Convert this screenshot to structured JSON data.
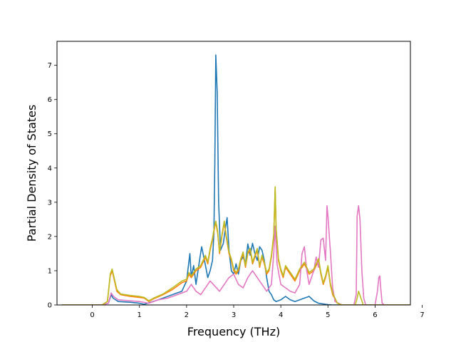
{
  "chart_data": {
    "type": "line",
    "xlabel": "Frequency (THz)",
    "ylabel": "Partial Density of States",
    "xlim": [
      -0.75,
      6.75
    ],
    "ylim": [
      0,
      7.7
    ],
    "xticks": [
      "0",
      "1",
      "2",
      "3",
      "4",
      "5",
      "6",
      "7"
    ],
    "yticks": [
      "0",
      "1",
      "2",
      "3",
      "4",
      "5",
      "6",
      "7"
    ],
    "grid": false,
    "legend": "none",
    "series": [
      {
        "color": "#1f77b4",
        "points": [
          [
            -0.65,
            0
          ],
          [
            0.2,
            0
          ],
          [
            0.34,
            0.05
          ],
          [
            0.4,
            0.3
          ],
          [
            0.44,
            0.2
          ],
          [
            0.55,
            0.1
          ],
          [
            0.8,
            0.08
          ],
          [
            1.0,
            0.05
          ],
          [
            1.1,
            0.02
          ],
          [
            1.2,
            0.06
          ],
          [
            1.4,
            0.15
          ],
          [
            1.6,
            0.25
          ],
          [
            1.8,
            0.35
          ],
          [
            1.9,
            0.4
          ],
          [
            2.0,
            0.7
          ],
          [
            2.07,
            1.5
          ],
          [
            2.1,
            0.8
          ],
          [
            2.15,
            1.15
          ],
          [
            2.2,
            0.6
          ],
          [
            2.28,
            1.35
          ],
          [
            2.32,
            1.7
          ],
          [
            2.38,
            1.3
          ],
          [
            2.45,
            0.8
          ],
          [
            2.5,
            1.0
          ],
          [
            2.55,
            1.3
          ],
          [
            2.58,
            2.1
          ],
          [
            2.6,
            4.2
          ],
          [
            2.62,
            7.3
          ],
          [
            2.65,
            6.2
          ],
          [
            2.68,
            3.0
          ],
          [
            2.72,
            1.6
          ],
          [
            2.78,
            1.8
          ],
          [
            2.82,
            2.2
          ],
          [
            2.86,
            2.55
          ],
          [
            2.9,
            1.6
          ],
          [
            2.95,
            1.0
          ],
          [
            3.0,
            0.9
          ],
          [
            3.05,
            1.2
          ],
          [
            3.1,
            0.9
          ],
          [
            3.15,
            1.3
          ],
          [
            3.2,
            1.4
          ],
          [
            3.25,
            1.2
          ],
          [
            3.3,
            1.78
          ],
          [
            3.35,
            1.45
          ],
          [
            3.4,
            1.8
          ],
          [
            3.45,
            1.5
          ],
          [
            3.5,
            1.3
          ],
          [
            3.55,
            1.7
          ],
          [
            3.6,
            1.6
          ],
          [
            3.65,
            1.3
          ],
          [
            3.7,
            0.8
          ],
          [
            3.75,
            0.4
          ],
          [
            3.8,
            0.3
          ],
          [
            3.85,
            0.15
          ],
          [
            3.9,
            0.1
          ],
          [
            4.0,
            0.15
          ],
          [
            4.1,
            0.25
          ],
          [
            4.2,
            0.15
          ],
          [
            4.3,
            0.1
          ],
          [
            4.5,
            0.2
          ],
          [
            4.6,
            0.25
          ],
          [
            4.7,
            0.12
          ],
          [
            4.8,
            0.05
          ],
          [
            4.9,
            0.03
          ],
          [
            5.0,
            0.01
          ],
          [
            5.1,
            0
          ],
          [
            6.75,
            0
          ]
        ]
      },
      {
        "color": "#ff7f0e",
        "points": [
          [
            -0.65,
            0
          ],
          [
            0.2,
            0
          ],
          [
            0.32,
            0.1
          ],
          [
            0.38,
            0.85
          ],
          [
            0.42,
            1.0
          ],
          [
            0.47,
            0.7
          ],
          [
            0.52,
            0.4
          ],
          [
            0.6,
            0.3
          ],
          [
            0.8,
            0.25
          ],
          [
            1.0,
            0.22
          ],
          [
            1.1,
            0.2
          ],
          [
            1.2,
            0.1
          ],
          [
            1.3,
            0.18
          ],
          [
            1.5,
            0.3
          ],
          [
            1.7,
            0.45
          ],
          [
            1.9,
            0.65
          ],
          [
            2.0,
            0.7
          ],
          [
            2.05,
            0.9
          ],
          [
            2.1,
            0.8
          ],
          [
            2.2,
            1.0
          ],
          [
            2.3,
            1.1
          ],
          [
            2.4,
            1.4
          ],
          [
            2.45,
            1.2
          ],
          [
            2.5,
            1.6
          ],
          [
            2.55,
            1.9
          ],
          [
            2.6,
            2.3
          ],
          [
            2.62,
            2.4
          ],
          [
            2.66,
            2.1
          ],
          [
            2.7,
            1.5
          ],
          [
            2.75,
            2.0
          ],
          [
            2.8,
            2.4
          ],
          [
            2.84,
            2.0
          ],
          [
            2.9,
            1.5
          ],
          [
            2.95,
            1.3
          ],
          [
            3.0,
            1.0
          ],
          [
            3.05,
            0.9
          ],
          [
            3.1,
            1.0
          ],
          [
            3.15,
            1.3
          ],
          [
            3.2,
            1.5
          ],
          [
            3.25,
            1.1
          ],
          [
            3.3,
            1.5
          ],
          [
            3.35,
            1.6
          ],
          [
            3.4,
            1.2
          ],
          [
            3.45,
            1.4
          ],
          [
            3.5,
            1.6
          ],
          [
            3.55,
            1.1
          ],
          [
            3.6,
            1.4
          ],
          [
            3.65,
            1.2
          ],
          [
            3.7,
            0.9
          ],
          [
            3.75,
            1.0
          ],
          [
            3.8,
            1.4
          ],
          [
            3.85,
            2.0
          ],
          [
            3.88,
            3.4
          ],
          [
            3.9,
            2.2
          ],
          [
            3.95,
            1.3
          ],
          [
            4.0,
            1.0
          ],
          [
            4.05,
            0.8
          ],
          [
            4.1,
            1.1
          ],
          [
            4.2,
            0.9
          ],
          [
            4.3,
            0.7
          ],
          [
            4.4,
            1.0
          ],
          [
            4.5,
            1.2
          ],
          [
            4.6,
            0.9
          ],
          [
            4.7,
            1.0
          ],
          [
            4.8,
            1.3
          ],
          [
            4.85,
            0.9
          ],
          [
            4.9,
            0.6
          ],
          [
            4.95,
            0.8
          ],
          [
            5.0,
            1.1
          ],
          [
            5.05,
            0.6
          ],
          [
            5.1,
            0.3
          ],
          [
            5.2,
            0.05
          ],
          [
            5.3,
            0
          ],
          [
            6.75,
            0
          ]
        ]
      },
      {
        "color": "#e377c2",
        "points": [
          [
            -0.65,
            0
          ],
          [
            0.2,
            0
          ],
          [
            0.34,
            0.05
          ],
          [
            0.4,
            0.35
          ],
          [
            0.45,
            0.25
          ],
          [
            0.55,
            0.15
          ],
          [
            0.8,
            0.12
          ],
          [
            1.0,
            0.1
          ],
          [
            1.2,
            0.05
          ],
          [
            1.4,
            0.15
          ],
          [
            1.6,
            0.2
          ],
          [
            1.8,
            0.3
          ],
          [
            2.0,
            0.4
          ],
          [
            2.1,
            0.6
          ],
          [
            2.2,
            0.4
          ],
          [
            2.3,
            0.3
          ],
          [
            2.4,
            0.5
          ],
          [
            2.5,
            0.7
          ],
          [
            2.6,
            0.55
          ],
          [
            2.7,
            0.4
          ],
          [
            2.8,
            0.6
          ],
          [
            2.9,
            0.8
          ],
          [
            3.0,
            0.9
          ],
          [
            3.1,
            0.6
          ],
          [
            3.2,
            0.5
          ],
          [
            3.3,
            0.8
          ],
          [
            3.4,
            1.0
          ],
          [
            3.5,
            0.8
          ],
          [
            3.6,
            0.6
          ],
          [
            3.7,
            0.4
          ],
          [
            3.8,
            0.6
          ],
          [
            3.85,
            1.5
          ],
          [
            3.88,
            2.3
          ],
          [
            3.92,
            1.2
          ],
          [
            4.0,
            0.6
          ],
          [
            4.1,
            0.5
          ],
          [
            4.2,
            0.4
          ],
          [
            4.3,
            0.35
          ],
          [
            4.4,
            0.6
          ],
          [
            4.45,
            1.5
          ],
          [
            4.5,
            1.7
          ],
          [
            4.55,
            1.0
          ],
          [
            4.6,
            0.6
          ],
          [
            4.7,
            1.0
          ],
          [
            4.75,
            1.4
          ],
          [
            4.8,
            1.1
          ],
          [
            4.85,
            1.9
          ],
          [
            4.9,
            1.95
          ],
          [
            4.95,
            1.3
          ],
          [
            4.98,
            2.9
          ],
          [
            5.0,
            2.6
          ],
          [
            5.05,
            1.6
          ],
          [
            5.1,
            0.5
          ],
          [
            5.15,
            0.1
          ],
          [
            5.3,
            0
          ],
          [
            5.55,
            0
          ],
          [
            5.6,
            0.3
          ],
          [
            5.62,
            2.6
          ],
          [
            5.65,
            2.9
          ],
          [
            5.68,
            2.5
          ],
          [
            5.72,
            1.0
          ],
          [
            5.76,
            0.2
          ],
          [
            5.8,
            0
          ],
          [
            6.0,
            0
          ],
          [
            6.05,
            0.4
          ],
          [
            6.08,
            0.8
          ],
          [
            6.1,
            0.85
          ],
          [
            6.12,
            0.5
          ],
          [
            6.15,
            0.05
          ],
          [
            6.2,
            0
          ],
          [
            6.75,
            0
          ]
        ]
      },
      {
        "color": "#bcbd22",
        "points": [
          [
            -0.65,
            0
          ],
          [
            0.2,
            0
          ],
          [
            0.32,
            0.1
          ],
          [
            0.38,
            0.9
          ],
          [
            0.42,
            1.05
          ],
          [
            0.47,
            0.75
          ],
          [
            0.52,
            0.45
          ],
          [
            0.6,
            0.32
          ],
          [
            0.8,
            0.28
          ],
          [
            1.0,
            0.25
          ],
          [
            1.1,
            0.22
          ],
          [
            1.2,
            0.12
          ],
          [
            1.3,
            0.2
          ],
          [
            1.5,
            0.32
          ],
          [
            1.7,
            0.5
          ],
          [
            1.9,
            0.7
          ],
          [
            2.0,
            0.75
          ],
          [
            2.05,
            0.95
          ],
          [
            2.1,
            0.85
          ],
          [
            2.2,
            1.05
          ],
          [
            2.3,
            1.15
          ],
          [
            2.4,
            1.45
          ],
          [
            2.45,
            1.25
          ],
          [
            2.5,
            1.65
          ],
          [
            2.55,
            1.95
          ],
          [
            2.6,
            2.35
          ],
          [
            2.62,
            2.45
          ],
          [
            2.66,
            2.15
          ],
          [
            2.7,
            1.55
          ],
          [
            2.75,
            2.05
          ],
          [
            2.8,
            2.45
          ],
          [
            2.84,
            2.05
          ],
          [
            2.9,
            1.55
          ],
          [
            2.95,
            1.35
          ],
          [
            3.0,
            1.05
          ],
          [
            3.05,
            0.95
          ],
          [
            3.1,
            1.05
          ],
          [
            3.15,
            1.35
          ],
          [
            3.2,
            1.55
          ],
          [
            3.25,
            1.15
          ],
          [
            3.3,
            1.55
          ],
          [
            3.35,
            1.65
          ],
          [
            3.4,
            1.25
          ],
          [
            3.45,
            1.45
          ],
          [
            3.5,
            1.65
          ],
          [
            3.55,
            1.15
          ],
          [
            3.6,
            1.45
          ],
          [
            3.65,
            1.25
          ],
          [
            3.7,
            0.95
          ],
          [
            3.75,
            1.05
          ],
          [
            3.8,
            1.45
          ],
          [
            3.85,
            2.05
          ],
          [
            3.88,
            3.45
          ],
          [
            3.9,
            2.25
          ],
          [
            3.95,
            1.35
          ],
          [
            4.0,
            1.05
          ],
          [
            4.05,
            0.85
          ],
          [
            4.1,
            1.15
          ],
          [
            4.2,
            0.95
          ],
          [
            4.3,
            0.75
          ],
          [
            4.4,
            1.05
          ],
          [
            4.5,
            1.25
          ],
          [
            4.6,
            0.95
          ],
          [
            4.7,
            1.05
          ],
          [
            4.8,
            1.35
          ],
          [
            4.85,
            0.95
          ],
          [
            4.9,
            0.65
          ],
          [
            4.95,
            0.85
          ],
          [
            5.0,
            1.15
          ],
          [
            5.05,
            0.65
          ],
          [
            5.1,
            0.35
          ],
          [
            5.2,
            0.05
          ],
          [
            5.3,
            0
          ],
          [
            5.58,
            0
          ],
          [
            5.62,
            0.2
          ],
          [
            5.65,
            0.4
          ],
          [
            5.7,
            0.2
          ],
          [
            5.75,
            0
          ],
          [
            6.75,
            0
          ]
        ]
      }
    ]
  }
}
